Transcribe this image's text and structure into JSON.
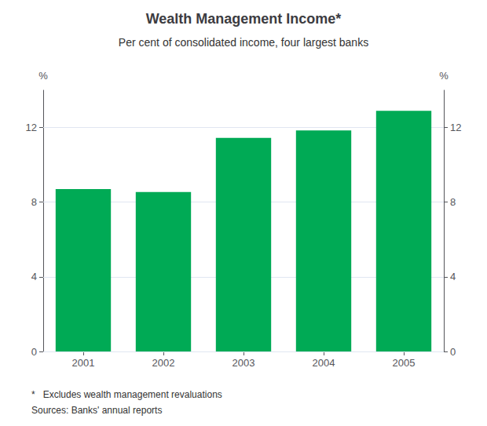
{
  "chart_data": {
    "type": "bar",
    "title": "Wealth Management Income*",
    "subtitle": "Per cent of consolidated income, four largest banks",
    "categories": [
      "2001",
      "2002",
      "2003",
      "2004",
      "2005"
    ],
    "values": [
      8.7,
      8.55,
      11.45,
      11.85,
      12.9
    ],
    "color": "#00AA55",
    "ylim": [
      0,
      14.0
    ],
    "yticks": [
      0,
      4,
      8,
      12
    ],
    "y2lim": [
      0,
      14.0
    ],
    "y2ticks": [
      0,
      4,
      8,
      12
    ],
    "ylabel": "%",
    "y2label": "%",
    "footnotes": [
      "*   Excludes wealth management revaluations",
      "Sources: Banks' annual reports"
    ],
    "grid": true
  }
}
